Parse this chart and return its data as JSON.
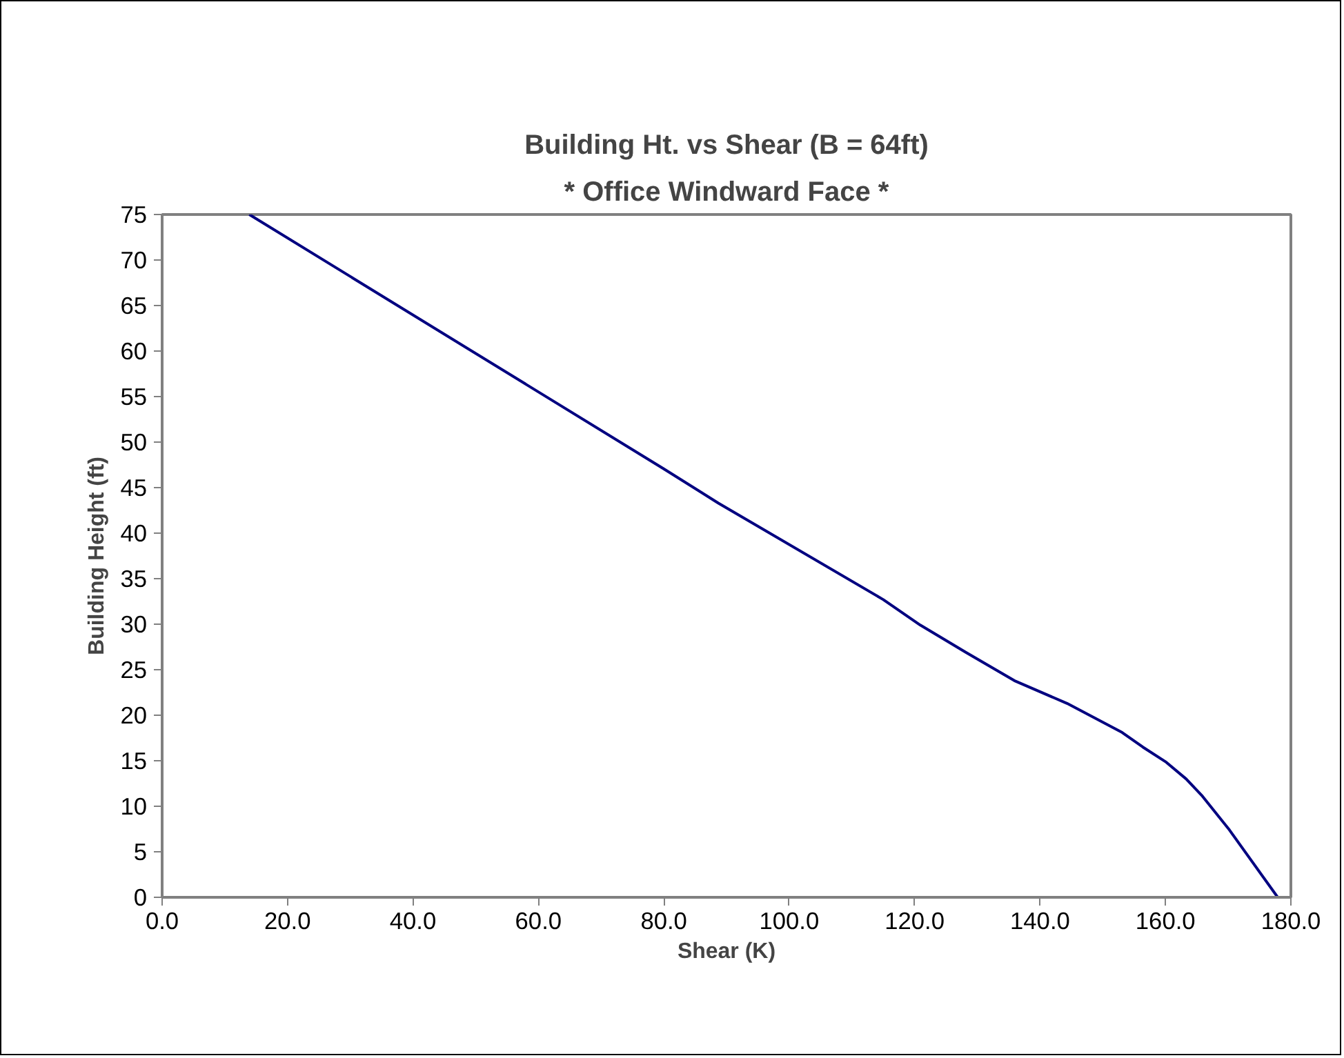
{
  "chart_data": {
    "type": "line",
    "title": "Building Ht. vs Shear (B = 64ft)",
    "subtitle": "* Office Windward Face *",
    "xlabel": "Shear (K)",
    "ylabel": "Building Height (ft)",
    "x": [
      13.9,
      79.9,
      88.7,
      115.0,
      120.9,
      128.2,
      135.9,
      144.3,
      153.1,
      156.4,
      160.0,
      163.3,
      165.9,
      170.2,
      177.9
    ],
    "series": [
      {
        "color": "#000080",
        "values": [
          75,
          47.1,
          43.3,
          32.7,
          29.9,
          26.9,
          23.8,
          21.3,
          18.1,
          16.5,
          14.9,
          13.0,
          11.1,
          7.4,
          0
        ]
      }
    ],
    "xlim": [
      0,
      180
    ],
    "ylim": [
      0,
      75
    ],
    "xticks": [
      {
        "value": 0,
        "label": "0.0"
      },
      {
        "value": 20,
        "label": "20.0"
      },
      {
        "value": 40,
        "label": "40.0"
      },
      {
        "value": 60,
        "label": "60.0"
      },
      {
        "value": 80,
        "label": "80.0"
      },
      {
        "value": 100,
        "label": "100.0"
      },
      {
        "value": 120,
        "label": "120.0"
      },
      {
        "value": 140,
        "label": "140.0"
      },
      {
        "value": 160,
        "label": "160.0"
      },
      {
        "value": 180,
        "label": "180.0"
      }
    ],
    "yticks": [
      0,
      5,
      10,
      15,
      20,
      25,
      30,
      35,
      40,
      45,
      50,
      55,
      60,
      65,
      70,
      75
    ],
    "grid": false,
    "marker": "none",
    "line_style": "solid"
  }
}
